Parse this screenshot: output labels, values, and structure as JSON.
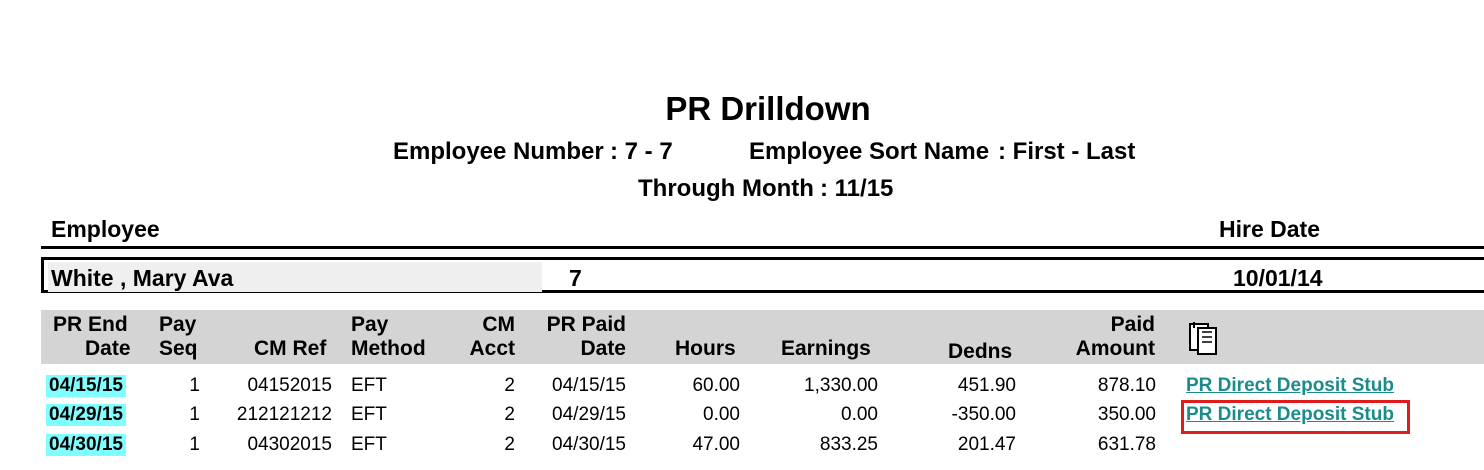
{
  "report": {
    "title": "PR Drilldown",
    "employee_number_label": "Employee Number",
    "employee_number_value": ": 7 - 7",
    "employee_sort_label": "Employee Sort Name",
    "employee_sort_value": ": First - Last",
    "through_month_label": "Through Month",
    "through_month_value": ": 11/15"
  },
  "employee": {
    "section_label": "Employee",
    "hire_date_label": "Hire Date",
    "name": "White  , Mary  Ava",
    "number": "7",
    "hire_date": "10/01/14"
  },
  "columns": {
    "pr_end_date": [
      "PR End",
      "Date"
    ],
    "pay_seq": [
      "Pay",
      "Seq"
    ],
    "cm_ref": "CM Ref",
    "pay_method": [
      "Pay",
      "Method"
    ],
    "cm_acct": [
      "CM",
      "Acct"
    ],
    "pr_paid_date": [
      "PR Paid",
      "Date"
    ],
    "hours": "Hours",
    "earnings": "Earnings",
    "dedns": "Dedns",
    "paid_amount": [
      "Paid",
      "Amount"
    ],
    "attachment_icon": "clipboard-icon"
  },
  "rows": [
    {
      "pr_end_date": "04/15/15",
      "pay_seq": "1",
      "cm_ref": "04152015",
      "pay_method": "EFT",
      "cm_acct": "2",
      "pr_paid_date": "04/15/15",
      "hours": "60.00",
      "earnings": "1,330.00",
      "dedns": "451.90",
      "paid_amount": "878.10",
      "link": "PR Direct Deposit Stub"
    },
    {
      "pr_end_date": "04/29/15",
      "pay_seq": "1",
      "cm_ref": "212121212",
      "pay_method": "EFT",
      "cm_acct": "2",
      "pr_paid_date": "04/29/15",
      "hours": "0.00",
      "earnings": "0.00",
      "dedns": "-350.00",
      "paid_amount": "350.00",
      "link": "PR Direct Deposit Stub"
    },
    {
      "pr_end_date": "04/30/15",
      "pay_seq": "1",
      "cm_ref": "04302015",
      "pay_method": "EFT",
      "cm_acct": "2",
      "pr_paid_date": "04/30/15",
      "hours": "47.00",
      "earnings": "833.25",
      "dedns": "201.47",
      "paid_amount": "631.78",
      "link": ""
    }
  ],
  "colors": {
    "header_band": "#d4d4d4",
    "date_highlight": "#7fffff",
    "link": "#1a8c8c",
    "selection_outline": "#e01b1b"
  }
}
